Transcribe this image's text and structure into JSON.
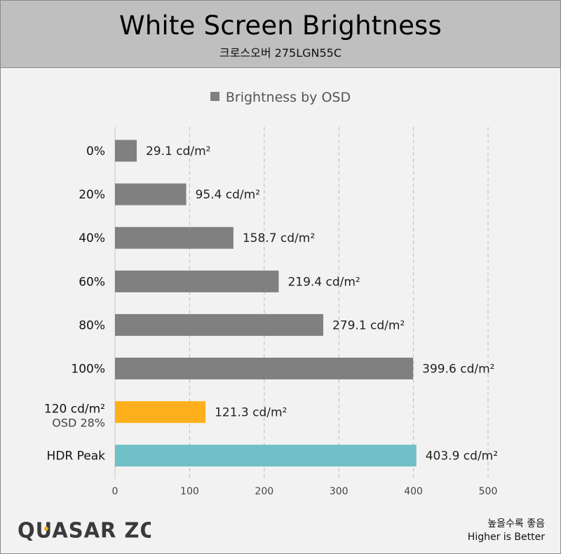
{
  "header": {
    "title": "White Screen Brightness",
    "subtitle": "크로스오버 275LGN55C"
  },
  "legend": {
    "label": "Brightness by OSD"
  },
  "footer": {
    "logo_text": "QUASAR ZONE",
    "note_ko": "높을수록 좋음",
    "note_en": "Higher is Better"
  },
  "colors": {
    "default_bar": "#808080",
    "highlight_bar": "#fdb01c",
    "hdr_bar": "#6fbfc6"
  },
  "chart_data": {
    "type": "bar",
    "orientation": "horizontal",
    "title": "White Screen Brightness",
    "subtitle": "크로스오버 275LGN55C",
    "categories": [
      {
        "label": "0%",
        "sub": ""
      },
      {
        "label": "20%",
        "sub": ""
      },
      {
        "label": "40%",
        "sub": ""
      },
      {
        "label": "60%",
        "sub": ""
      },
      {
        "label": "80%",
        "sub": ""
      },
      {
        "label": "100%",
        "sub": ""
      },
      {
        "label": "120 cd/m²",
        "sub": "OSD 28%"
      },
      {
        "label": "HDR Peak",
        "sub": ""
      }
    ],
    "series": [
      {
        "name": "Brightness by OSD",
        "values": [
          29.1,
          95.4,
          158.7,
          219.4,
          279.1,
          399.6,
          121.3,
          403.9
        ]
      }
    ],
    "value_labels": [
      "29.1 cd/m²",
      "95.4 cd/m²",
      "158.7 cd/m²",
      "219.4 cd/m²",
      "279.1 cd/m²",
      "399.6 cd/m²",
      "121.3 cd/m²",
      "403.9 cd/m²"
    ],
    "bar_colors": [
      "#808080",
      "#808080",
      "#808080",
      "#808080",
      "#808080",
      "#808080",
      "#fdb01c",
      "#6fbfc6"
    ],
    "xlim": [
      0,
      500
    ],
    "xticks": [
      0,
      100,
      200,
      300,
      400,
      500
    ],
    "grid": true,
    "legend_position": "top-center"
  }
}
